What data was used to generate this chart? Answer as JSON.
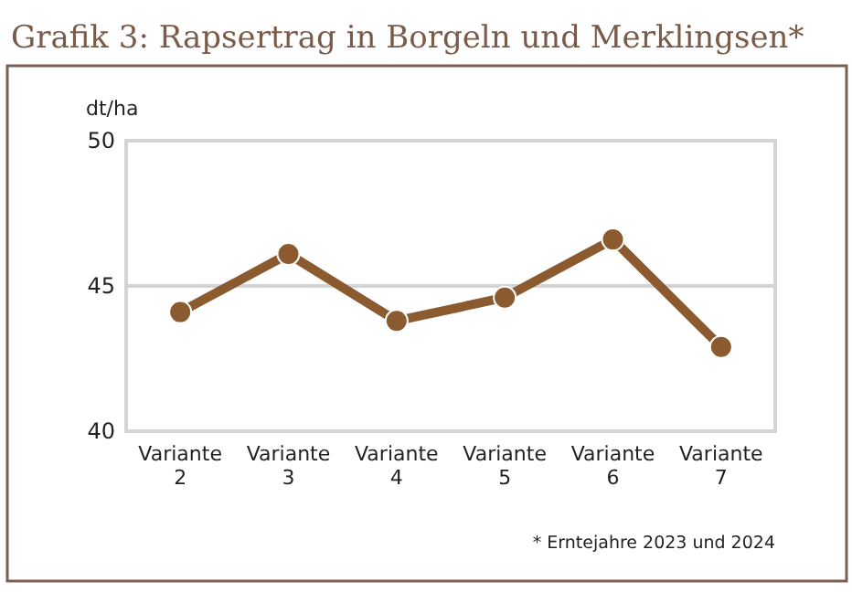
{
  "chart_data": {
    "type": "line",
    "title": "Grafik 3: Rapsertrag in Borgeln und Merklingsen*",
    "ylabel": "dt/ha",
    "categories": [
      "Variante 2",
      "Variante 3",
      "Variante 4",
      "Variante 5",
      "Variante 6",
      "Variante 7"
    ],
    "series": [
      {
        "color": "#8b5a2e",
        "values": [
          44.1,
          46.1,
          43.8,
          44.6,
          46.6,
          42.9
        ]
      }
    ],
    "ylim": [
      40,
      50
    ],
    "yticks": [
      40,
      45,
      50
    ],
    "grid": "y",
    "marker": "circle",
    "line_style": "solid",
    "annotations": [
      "* Erntejahre 2023 und 2024"
    ]
  }
}
